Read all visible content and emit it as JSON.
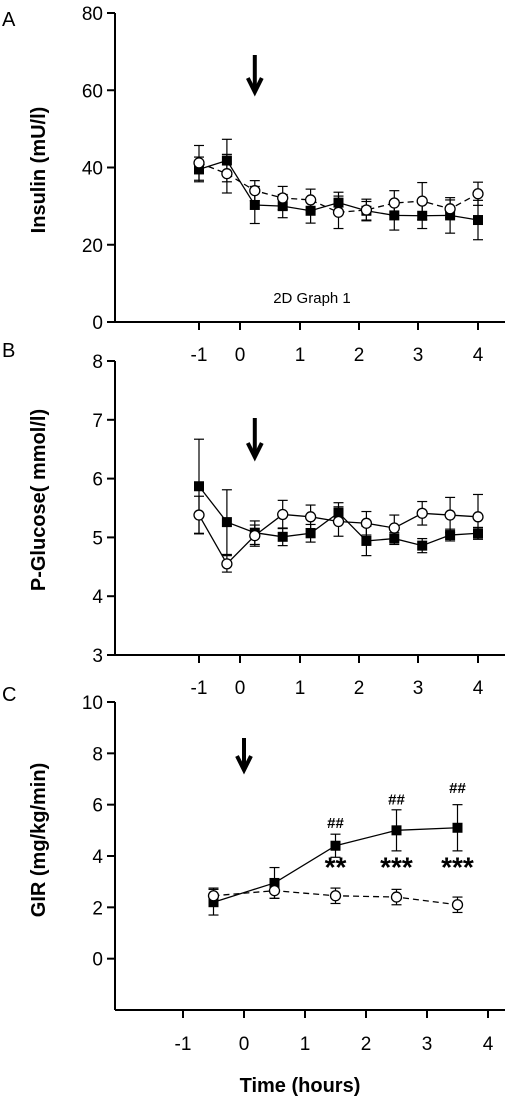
{
  "figure": {
    "xlabel": "Time (hours)",
    "panels_note": "2D Graph 1"
  },
  "chart_data": [
    {
      "panel": "A",
      "type": "line",
      "ylabel": "Insulin (mU/l)",
      "ylim": [
        0,
        80
      ],
      "yticks": [
        0,
        20,
        40,
        60,
        80
      ],
      "xlim": [
        -1.5,
        4.3
      ],
      "xticks": [
        -1,
        0,
        1,
        2,
        3,
        4
      ],
      "arrow_at_x": 0,
      "annotation": "2D Graph 1",
      "series": [
        {
          "marker": "filled-square",
          "line": "solid",
          "x": [
            -1,
            -0.5,
            0,
            0.5,
            1,
            1.5,
            2,
            2.5,
            3,
            3.5,
            4
          ],
          "y": [
            39.5,
            41.8,
            30.3,
            30.0,
            28.8,
            30.9,
            28.8,
            27.6,
            27.5,
            27.6,
            26.4
          ],
          "err": [
            3.2,
            5.5,
            4.8,
            3.0,
            3.2,
            2.7,
            2.4,
            3.8,
            3.3,
            4.6,
            5.1
          ]
        },
        {
          "marker": "open-circle",
          "line": "dashed",
          "x": [
            -1,
            -0.5,
            0,
            0.5,
            1,
            1.5,
            2,
            2.5,
            3,
            3.5,
            4
          ],
          "y": [
            41.2,
            38.4,
            34.0,
            32.1,
            31.6,
            28.4,
            29.0,
            30.8,
            31.3,
            29.3,
            33.2
          ],
          "err": [
            4.5,
            5.0,
            2.6,
            3.0,
            2.8,
            4.2,
            2.8,
            3.2,
            4.8,
            2.3,
            3.0
          ]
        }
      ]
    },
    {
      "panel": "B",
      "type": "line",
      "ylabel": "P-Glucose( mmol/l)",
      "ylim": [
        3,
        8
      ],
      "yticks": [
        3,
        4,
        5,
        6,
        7,
        8
      ],
      "xlim": [
        -1.5,
        4.3
      ],
      "xticks": [
        -1,
        0,
        1,
        2,
        3,
        4
      ],
      "arrow_at_x": 0,
      "series": [
        {
          "marker": "filled-square",
          "line": "solid",
          "x": [
            -1,
            -0.5,
            0,
            0.5,
            1,
            1.5,
            2,
            2.5,
            3,
            3.5,
            4
          ],
          "y": [
            5.87,
            5.26,
            5.08,
            5.01,
            5.07,
            5.42,
            4.94,
            4.98,
            4.86,
            5.04,
            5.07
          ],
          "err": [
            0.8,
            0.55,
            0.2,
            0.15,
            0.15,
            0.17,
            0.25,
            0.1,
            0.12,
            0.1,
            0.1
          ]
        },
        {
          "marker": "open-circle",
          "line": "solid",
          "x": [
            -1,
            -0.5,
            0,
            0.5,
            1,
            1.5,
            2,
            2.5,
            3,
            3.5,
            4
          ],
          "y": [
            5.38,
            4.55,
            5.03,
            5.39,
            5.35,
            5.27,
            5.24,
            5.16,
            5.41,
            5.38,
            5.35
          ],
          "err": [
            0.32,
            0.14,
            0.18,
            0.24,
            0.2,
            0.25,
            0.2,
            0.22,
            0.2,
            0.3,
            0.38
          ]
        }
      ]
    },
    {
      "panel": "C",
      "type": "line",
      "ylabel": "GIR (mg/kg/min)",
      "xlabel": "Time (hours)",
      "ylim": [
        -2,
        10
      ],
      "yticks": [
        0,
        2,
        4,
        6,
        8,
        10
      ],
      "xlim": [
        -1.5,
        4.3
      ],
      "xticks": [
        -1,
        0,
        1,
        2,
        3,
        4
      ],
      "arrow_at_x": 0,
      "series": [
        {
          "marker": "filled-square",
          "line": "solid",
          "x": [
            -0.5,
            0.5,
            1.5,
            2.5,
            3.5
          ],
          "y": [
            2.2,
            2.95,
            4.4,
            5.0,
            5.1
          ],
          "err": [
            0.5,
            0.6,
            0.45,
            0.8,
            0.9
          ]
        },
        {
          "marker": "open-circle",
          "line": "dashed",
          "x": [
            -0.5,
            0.5,
            1.5,
            2.5,
            3.5
          ],
          "y": [
            2.45,
            2.65,
            2.45,
            2.4,
            2.1
          ],
          "err": [
            0.3,
            0.3,
            0.3,
            0.3,
            0.3
          ]
        }
      ],
      "annotations": [
        {
          "text": "##",
          "x": 1.5,
          "y": 5.1,
          "style": "hash"
        },
        {
          "text": "##",
          "x": 2.5,
          "y": 6.0,
          "style": "hash"
        },
        {
          "text": "##",
          "x": 3.5,
          "y": 6.45,
          "style": "hash"
        },
        {
          "text": "**",
          "x": 1.5,
          "y": 3.2,
          "style": "star"
        },
        {
          "text": "***",
          "x": 2.5,
          "y": 3.2,
          "style": "star"
        },
        {
          "text": "***",
          "x": 3.5,
          "y": 3.2,
          "style": "star"
        }
      ]
    }
  ]
}
